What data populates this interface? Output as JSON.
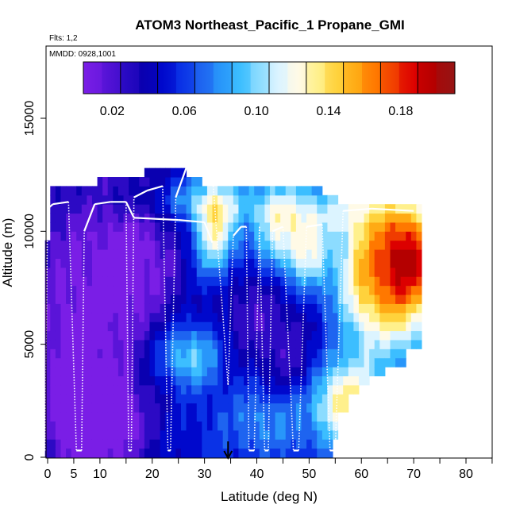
{
  "chart_data": {
    "type": "heatmap",
    "title": "ATOM3 Northeast_Pacific_1 Propane_GMI",
    "flights_label": "Flts: 1,2",
    "dates_label": "MMDD: 0928,1001",
    "xlabel": "Latitude (deg N)",
    "ylabel": "Altitude (m)",
    "xlim": [
      0,
      85
    ],
    "ylim": [
      0,
      18000
    ],
    "x_ticks": [
      0,
      5,
      10,
      20,
      30,
      40,
      50,
      60,
      70,
      80
    ],
    "y_ticks": [
      0,
      5000,
      10000,
      15000
    ],
    "colorbar": {
      "range": [
        0.004,
        0.21
      ],
      "ticks": [
        0.02,
        0.06,
        0.1,
        0.14,
        0.18
      ],
      "tick_labels": [
        "0.02",
        "0.06",
        "0.10",
        "0.14",
        "0.18"
      ],
      "colors": [
        "#7a1ee6",
        "#5a14d8",
        "#2c0ac4",
        "#0a00b0",
        "#0008cc",
        "#0a32e6",
        "#1e64f0",
        "#2896fa",
        "#3cbeff",
        "#8cdcff",
        "#dcf4ff",
        "#fffae6",
        "#fff08c",
        "#ffd23c",
        "#ffaa14",
        "#ff7800",
        "#f03c00",
        "#dc0000",
        "#b40000",
        "#961414"
      ]
    },
    "marker_latitude": 34.5,
    "flight_track": [
      [
        -0.5,
        300
      ],
      [
        0,
        11000
      ],
      [
        1,
        11200
      ],
      [
        4,
        11300
      ],
      [
        5.5,
        300
      ],
      [
        6.5,
        300
      ],
      [
        7,
        10000
      ],
      [
        9,
        11200
      ],
      [
        12,
        11300
      ],
      [
        15,
        11300
      ],
      [
        15.5,
        300
      ],
      [
        16,
        300
      ],
      [
        16.5,
        11500
      ],
      [
        19,
        11800
      ],
      [
        22,
        12000
      ],
      [
        23,
        300
      ],
      [
        23.5,
        300
      ],
      [
        24.5,
        11500
      ],
      [
        26.5,
        12800
      ],
      [
        27.5,
        12700
      ],
      [
        31.5,
        12500
      ],
      [
        34.5,
        3200
      ],
      [
        35.5,
        9800
      ],
      [
        37,
        10200
      ],
      [
        38,
        10200
      ],
      [
        38.5,
        300
      ],
      [
        39.5,
        300
      ],
      [
        40.5,
        10200
      ],
      [
        41.5,
        300
      ],
      [
        42.2,
        300
      ],
      [
        43,
        10000
      ],
      [
        45,
        10200
      ],
      [
        47,
        300
      ],
      [
        48,
        300
      ],
      [
        49.5,
        10200
      ],
      [
        52.5,
        10300
      ],
      [
        54,
        300
      ],
      [
        55,
        300
      ],
      [
        56.5,
        10900
      ],
      [
        62,
        11000
      ],
      [
        70,
        10900
      ]
    ],
    "flight_track2": [
      [
        15,
        11300
      ],
      [
        16.5,
        10600
      ],
      [
        25,
        10500
      ],
      [
        30,
        10400
      ],
      [
        31.5,
        9500
      ]
    ],
    "notes": "Curtain of propane mixing ratio (ppb) vs latitude and altitude along two flights; color per colorbar."
  }
}
